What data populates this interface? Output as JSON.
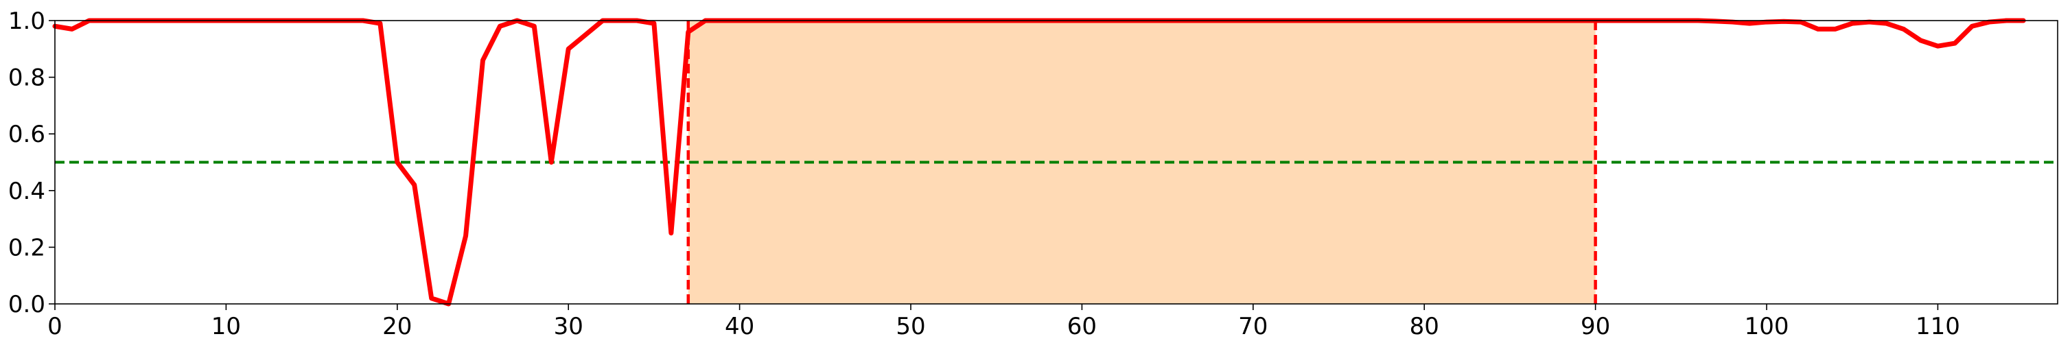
{
  "chart_data": {
    "type": "line",
    "title": "",
    "xlabel": "",
    "ylabel": "",
    "xlim": [
      0,
      117
    ],
    "ylim": [
      0,
      1
    ],
    "x_ticks": [
      0,
      10,
      20,
      30,
      40,
      50,
      60,
      70,
      80,
      90,
      100,
      110
    ],
    "y_ticks": [
      0.0,
      0.2,
      0.4,
      0.6,
      0.8,
      1.0
    ],
    "x_tick_labels": [
      "0",
      "10",
      "20",
      "30",
      "40",
      "50",
      "60",
      "70",
      "80",
      "90",
      "100",
      "110"
    ],
    "y_tick_labels": [
      "0.0",
      "0.2",
      "0.4",
      "0.6",
      "0.8",
      "1.0"
    ],
    "grid": false,
    "threshold": {
      "y": 0.5,
      "color": "#008000",
      "style": "dashed"
    },
    "shaded_region": {
      "x_start": 37,
      "x_end": 90,
      "color": "#ffdab5"
    },
    "vertical_markers": [
      {
        "x": 37,
        "color": "#ff0000",
        "style": "dashed"
      },
      {
        "x": 90,
        "color": "#ff0000",
        "style": "dashed"
      }
    ],
    "series": [
      {
        "color": "#ff0000",
        "x": [
          0,
          1,
          2,
          3,
          4,
          5,
          6,
          7,
          8,
          9,
          10,
          11,
          12,
          13,
          14,
          15,
          16,
          17,
          18,
          19,
          20,
          21,
          22,
          23,
          24,
          25,
          26,
          27,
          28,
          29,
          30,
          31,
          32,
          33,
          34,
          35,
          36,
          37,
          38,
          39,
          40,
          41,
          42,
          43,
          44,
          45,
          46,
          47,
          48,
          49,
          50,
          51,
          52,
          53,
          54,
          55,
          56,
          57,
          58,
          59,
          60,
          61,
          62,
          63,
          64,
          65,
          66,
          67,
          68,
          69,
          70,
          71,
          72,
          73,
          74,
          75,
          76,
          77,
          78,
          79,
          80,
          81,
          82,
          83,
          84,
          85,
          86,
          87,
          88,
          89,
          90,
          91,
          92,
          93,
          94,
          95,
          96,
          97,
          98,
          99,
          100,
          101,
          102,
          103,
          104,
          105,
          106,
          107,
          108,
          109,
          110,
          111,
          112,
          113,
          114,
          115
        ],
        "y": [
          0.98,
          0.97,
          1.0,
          1.0,
          1.0,
          1.0,
          1.0,
          1.0,
          1.0,
          1.0,
          1.0,
          1.0,
          1.0,
          1.0,
          1.0,
          1.0,
          1.0,
          1.0,
          1.0,
          0.99,
          0.5,
          0.42,
          0.02,
          0.0,
          0.24,
          0.86,
          0.98,
          1.0,
          0.98,
          0.5,
          0.9,
          0.95,
          1.0,
          1.0,
          1.0,
          0.99,
          0.25,
          0.96,
          1.0,
          1.0,
          1.0,
          1.0,
          1.0,
          1.0,
          1.0,
          1.0,
          1.0,
          1.0,
          1.0,
          1.0,
          1.0,
          1.0,
          1.0,
          1.0,
          1.0,
          1.0,
          1.0,
          1.0,
          1.0,
          1.0,
          1.0,
          1.0,
          1.0,
          1.0,
          1.0,
          1.0,
          1.0,
          1.0,
          1.0,
          1.0,
          1.0,
          1.0,
          1.0,
          1.0,
          1.0,
          1.0,
          1.0,
          1.0,
          1.0,
          1.0,
          1.0,
          1.0,
          1.0,
          1.0,
          1.0,
          1.0,
          1.0,
          1.0,
          1.0,
          1.0,
          1.0,
          1.0,
          1.0,
          1.0,
          1.0,
          1.0,
          1.0,
          0.998,
          0.995,
          0.99,
          0.995,
          0.997,
          0.995,
          0.97,
          0.97,
          0.99,
          0.995,
          0.99,
          0.97,
          0.93,
          0.91,
          0.92,
          0.98,
          0.995,
          1.0,
          1.0
        ]
      }
    ]
  }
}
